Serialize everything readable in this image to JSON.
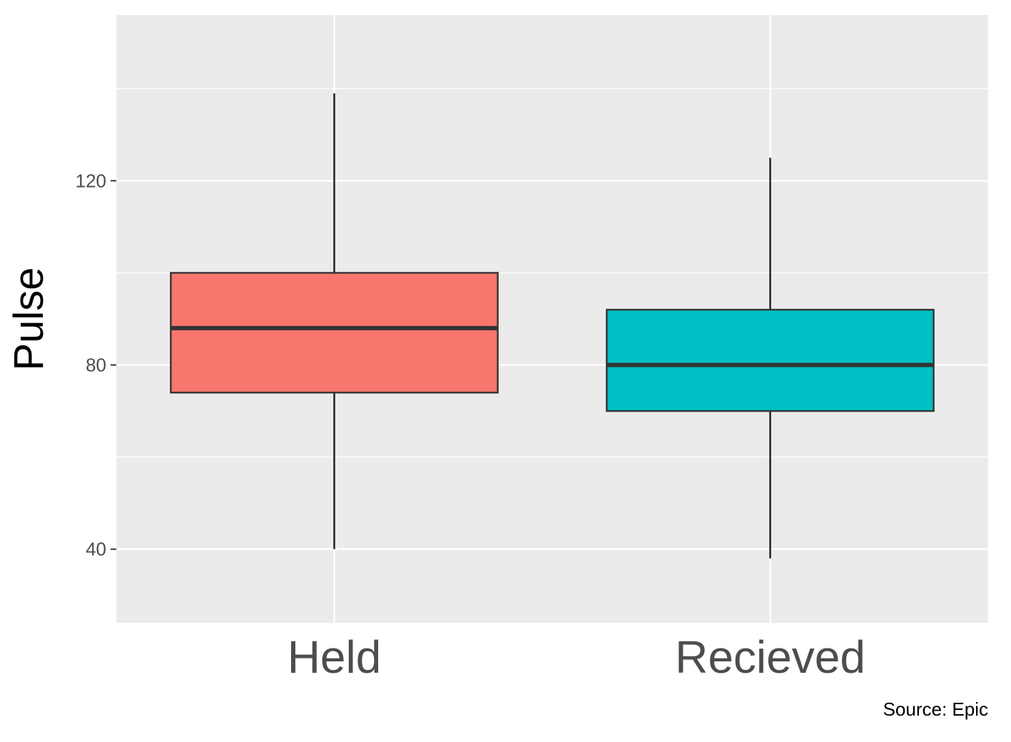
{
  "chart_data": {
    "type": "box",
    "ylabel": "Pulse",
    "xlabel": "",
    "caption": "Source: Epic",
    "ylim": [
      24,
      156
    ],
    "y_ticks": [
      40,
      80,
      120
    ],
    "y_minor_ticks": [
      60,
      100,
      140
    ],
    "grid": true,
    "categories": [
      "Held",
      "Recieved"
    ],
    "boxes": [
      {
        "category": "Held",
        "whisker_low": 40,
        "q1": 74,
        "median": 88,
        "q3": 100,
        "whisker_high": 139,
        "fill": "#F8766D"
      },
      {
        "category": "Recieved",
        "whisker_low": 38,
        "q1": 70,
        "median": 80,
        "q3": 92,
        "whisker_high": 125,
        "fill": "#00BFC4"
      }
    ],
    "colors": {
      "panel": "#EBEBEB",
      "grid": "#FFFFFF",
      "outline": "#333333",
      "whisker": "#1A1A1A"
    }
  }
}
